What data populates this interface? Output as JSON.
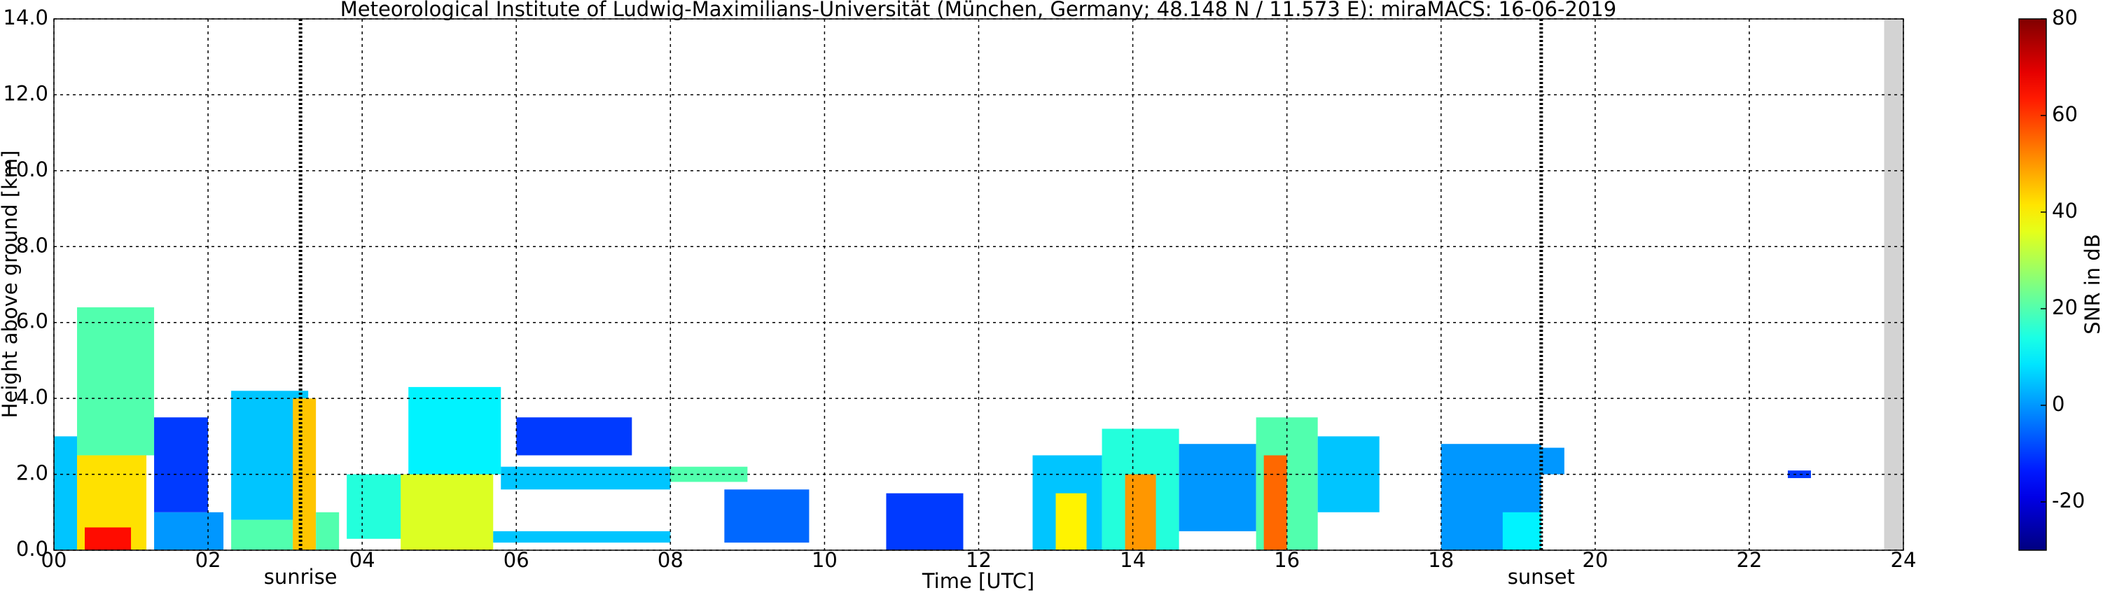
{
  "chart_data": {
    "type": "heatmap",
    "title": "Meteorological Institute of Ludwig-Maximilians-Universität (München, Germany; 48.148 N / 11.573 E):    miraMACS: 16-06-2019",
    "xlabel": "Time [UTC]",
    "ylabel": "Height above ground [km]",
    "xlim": [
      0,
      24
    ],
    "xticks": [
      {
        "value": 0,
        "label": "00"
      },
      {
        "value": 2,
        "label": "02"
      },
      {
        "value": 4,
        "label": "04"
      },
      {
        "value": 6,
        "label": "06"
      },
      {
        "value": 8,
        "label": "08"
      },
      {
        "value": 10,
        "label": "10"
      },
      {
        "value": 12,
        "label": "12"
      },
      {
        "value": 14,
        "label": "14"
      },
      {
        "value": 16,
        "label": "16"
      },
      {
        "value": 18,
        "label": "18"
      },
      {
        "value": 20,
        "label": "20"
      },
      {
        "value": 22,
        "label": "22"
      },
      {
        "value": 24,
        "label": "24"
      }
    ],
    "ylim": [
      0,
      14
    ],
    "yticks": [
      {
        "value": 0,
        "label": "0.0"
      },
      {
        "value": 2,
        "label": "2.0"
      },
      {
        "value": 4,
        "label": "4.0"
      },
      {
        "value": 6,
        "label": "6.0"
      },
      {
        "value": 8,
        "label": "8.0"
      },
      {
        "value": 10,
        "label": "10.0"
      },
      {
        "value": 12,
        "label": "12.0"
      },
      {
        "value": 14,
        "label": "14.0"
      }
    ],
    "grid": true,
    "colorbar_label": "SNR in dB",
    "clim": [
      -30,
      80
    ],
    "cticks": [
      -20,
      0,
      20,
      40,
      60,
      80
    ],
    "colormap": "jet",
    "no_data": [
      23.75,
      24
    ],
    "no_data_color": "#d3d3d3",
    "annotations": [
      {
        "x": 3.2,
        "label": "sunrise"
      },
      {
        "x": 19.3,
        "label": "sunset"
      }
    ],
    "cells": [
      [
        0.0,
        0.3,
        0.0,
        3.0,
        5
      ],
      [
        0.3,
        1.3,
        2.5,
        6.4,
        20
      ],
      [
        0.3,
        1.2,
        0.0,
        2.5,
        42
      ],
      [
        0.4,
        1.0,
        0.0,
        0.6,
        65
      ],
      [
        1.3,
        2.2,
        0.0,
        1.0,
        0
      ],
      [
        1.3,
        2.0,
        1.0,
        3.5,
        -10
      ],
      [
        2.3,
        3.3,
        0.8,
        4.2,
        5
      ],
      [
        2.3,
        3.1,
        0.0,
        0.8,
        20
      ],
      [
        3.1,
        3.4,
        0.0,
        4.0,
        45
      ],
      [
        3.4,
        3.7,
        0.0,
        1.0,
        20
      ],
      [
        3.8,
        5.2,
        0.3,
        2.0,
        15
      ],
      [
        4.5,
        5.7,
        0.0,
        2.0,
        35
      ],
      [
        4.6,
        5.8,
        2.0,
        4.3,
        10
      ],
      [
        5.8,
        8.0,
        1.6,
        2.2,
        5
      ],
      [
        5.7,
        8.0,
        0.2,
        0.5,
        5
      ],
      [
        8.0,
        9.0,
        1.8,
        2.2,
        20
      ],
      [
        6.0,
        7.5,
        2.5,
        3.5,
        -10
      ],
      [
        8.7,
        9.8,
        0.2,
        1.6,
        -5
      ],
      [
        10.8,
        11.8,
        0.0,
        1.5,
        -10
      ],
      [
        12.7,
        13.6,
        0.0,
        2.5,
        5
      ],
      [
        13.0,
        13.4,
        0.0,
        1.5,
        40
      ],
      [
        13.6,
        14.6,
        0.0,
        3.2,
        15
      ],
      [
        13.9,
        14.3,
        0.0,
        2.0,
        50
      ],
      [
        14.6,
        15.6,
        0.5,
        2.8,
        0
      ],
      [
        15.6,
        16.4,
        0.0,
        3.5,
        20
      ],
      [
        15.7,
        16.0,
        0.0,
        2.5,
        55
      ],
      [
        16.4,
        17.2,
        1.0,
        3.0,
        5
      ],
      [
        18.0,
        19.3,
        0.0,
        2.8,
        0
      ],
      [
        18.8,
        19.3,
        0.0,
        1.0,
        10
      ],
      [
        19.3,
        19.6,
        2.0,
        2.7,
        0
      ],
      [
        22.5,
        22.8,
        1.9,
        2.1,
        -10
      ]
    ]
  }
}
